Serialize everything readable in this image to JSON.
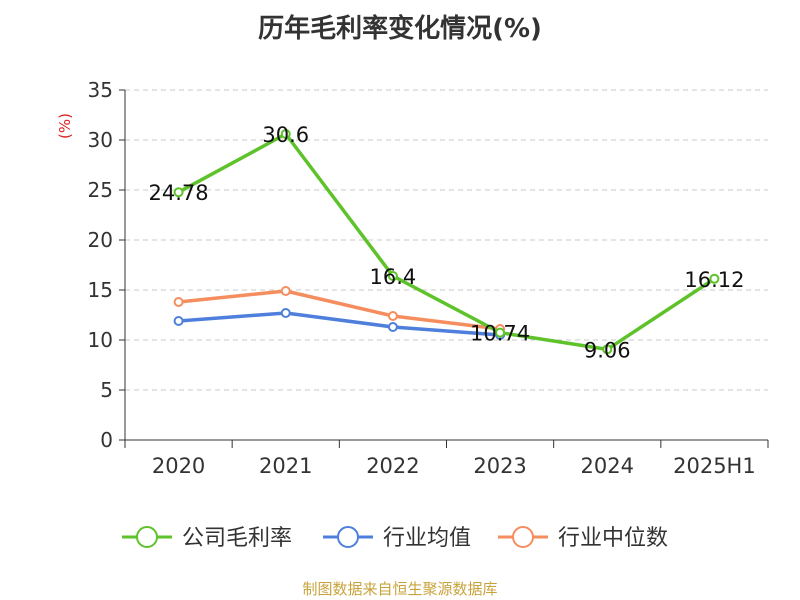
{
  "footer": "制图数据来自恒生聚源数据库",
  "chart_data": {
    "type": "line",
    "title": "历年毛利率变化情况(%)",
    "ylabel": "(%)",
    "xlabel": "",
    "categories": [
      "2020",
      "2021",
      "2022",
      "2023",
      "2024",
      "2025H1"
    ],
    "ylim": [
      0,
      35
    ],
    "yticks": [
      0,
      5,
      10,
      15,
      20,
      25,
      30,
      35
    ],
    "grid": true,
    "legend_position": "bottom",
    "series": [
      {
        "name": "公司毛利率",
        "color": "#5ec22a",
        "values": [
          24.78,
          30.6,
          16.4,
          10.74,
          9.06,
          16.12
        ],
        "labels": [
          "24.78",
          "30.6",
          "16.4",
          "10.74",
          "9.06",
          "16.12"
        ]
      },
      {
        "name": "行业均值",
        "color": "#4f7fdc",
        "values": [
          11.9,
          12.7,
          11.3,
          10.5,
          null,
          null
        ]
      },
      {
        "name": "行业中位数",
        "color": "#f58d5e",
        "values": [
          13.8,
          14.9,
          12.4,
          11.1,
          null,
          null
        ]
      }
    ]
  }
}
